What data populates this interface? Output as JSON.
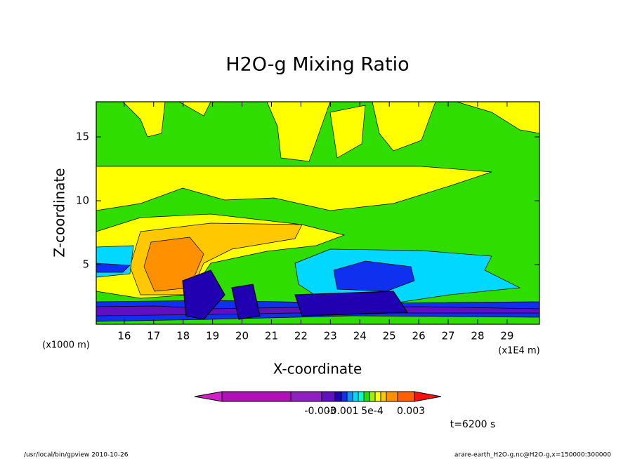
{
  "chart_data": {
    "type": "contour",
    "title": "H2O-g Mixing Ratio",
    "x_label": "X-coordinate",
    "y_label": "Z-coordinate",
    "x_unit": "(x1E4 m)",
    "y_unit": "(x1000 m)",
    "xlim": [
      15.05,
      30.1
    ],
    "ylim": [
      0.33,
      17.75
    ],
    "xticks": [
      16,
      17,
      18,
      19,
      20,
      21,
      22,
      23,
      24,
      25,
      26,
      27,
      28,
      29
    ],
    "yticks": [
      5,
      10,
      15
    ],
    "colorbar_colors": [
      "#d020c8",
      "#b010b8",
      "#9020c0",
      "#6010c0",
      "#2000b0",
      "#1030f0",
      "#1090ff",
      "#00d8ff",
      "#00ffd0",
      "#20e000",
      "#a0f000",
      "#ffff00",
      "#ffc800",
      "#ff9000",
      "#ff6000",
      "#ff1010"
    ],
    "colorbar_labels": [
      "-0.003",
      "-0.001",
      "5e-4",
      "0.003"
    ],
    "time_label": "t=6200 s",
    "footer_left": "/usr/local/bin/gpview  2010-10-26",
    "footer_right": "arare-earth_H2O-g.nc@H2O-g,x=150000:300000"
  }
}
